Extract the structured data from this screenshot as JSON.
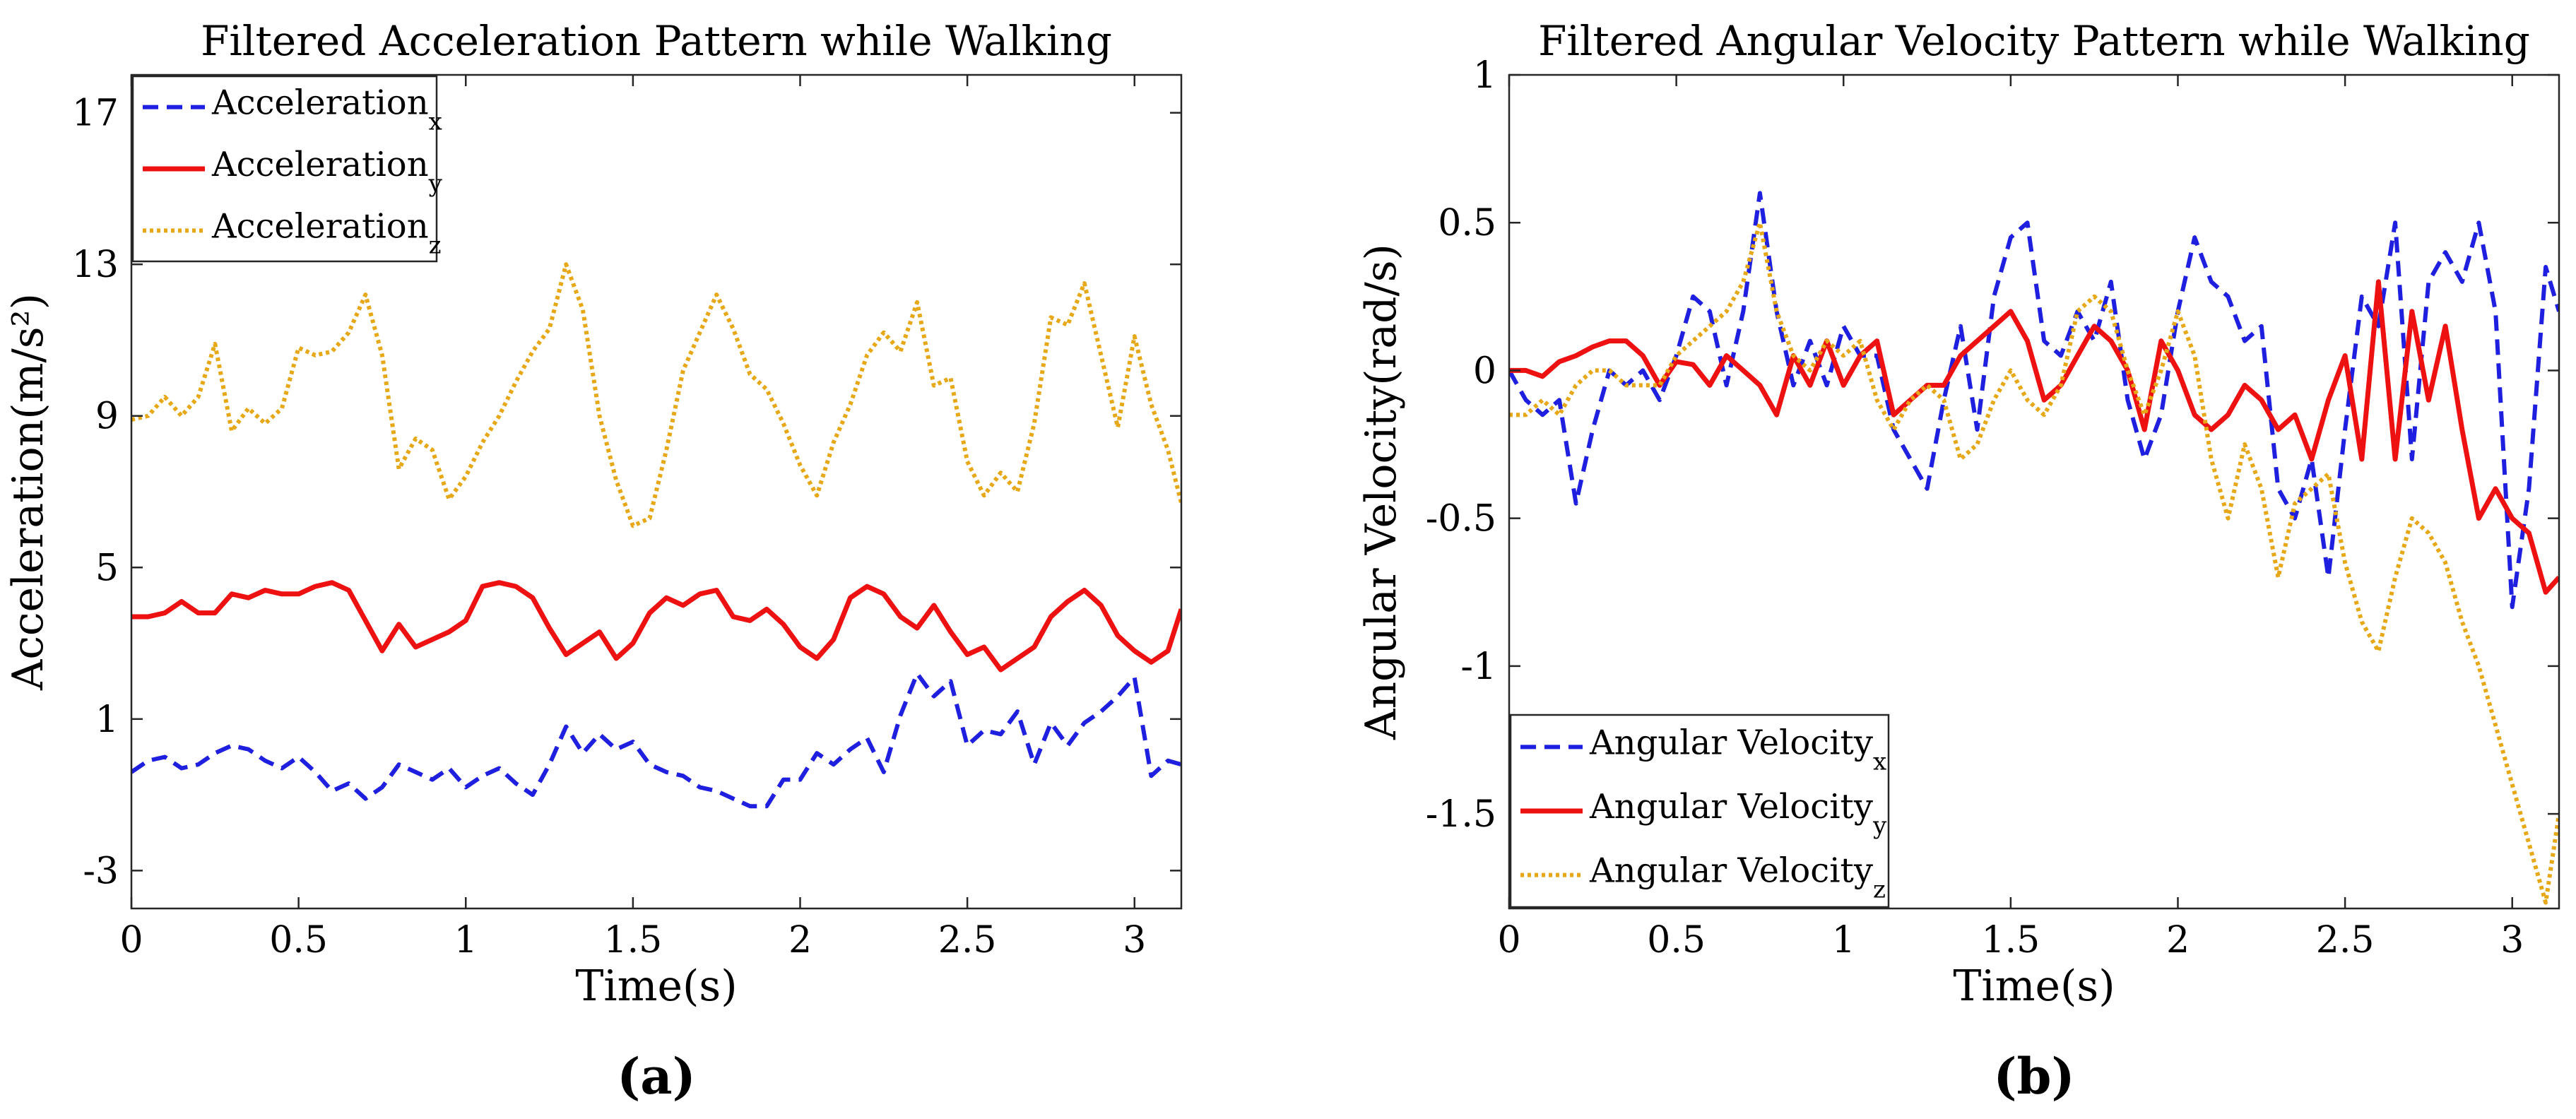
{
  "chart_data": [
    {
      "type": "line",
      "panel_label": "(a)",
      "title": "Filtered Acceleration Pattern while Walking",
      "xlabel": "Time(s)",
      "ylabel": "Acceleration(m/s²)",
      "xlim": [
        0,
        3.14
      ],
      "ylim": [
        -4,
        18
      ],
      "xticks": [
        0,
        0.5,
        1,
        1.5,
        2,
        2.5,
        3
      ],
      "xtick_labels": [
        "0",
        "0.5",
        "1",
        "1.5",
        "2",
        "2.5",
        "3"
      ],
      "yticks": [
        -3,
        1,
        5,
        9,
        13,
        17
      ],
      "ytick_labels": [
        "-3",
        "1",
        "5",
        "9",
        "13",
        "17"
      ],
      "legend_position": "top-left",
      "series": [
        {
          "name": "Acceleration",
          "subscript": "x",
          "color": "#1f1fe0",
          "style": "dashed",
          "x": [
            0,
            0.05,
            0.1,
            0.15,
            0.2,
            0.25,
            0.3,
            0.35,
            0.4,
            0.45,
            0.5,
            0.55,
            0.6,
            0.65,
            0.7,
            0.75,
            0.8,
            0.85,
            0.9,
            0.95,
            1.0,
            1.05,
            1.1,
            1.15,
            1.2,
            1.25,
            1.3,
            1.35,
            1.4,
            1.45,
            1.5,
            1.55,
            1.6,
            1.65,
            1.7,
            1.75,
            1.8,
            1.85,
            1.9,
            1.95,
            2.0,
            2.05,
            2.1,
            2.15,
            2.2,
            2.25,
            2.3,
            2.35,
            2.4,
            2.45,
            2.5,
            2.55,
            2.6,
            2.65,
            2.7,
            2.75,
            2.8,
            2.85,
            2.9,
            2.95,
            3.0,
            3.05,
            3.1,
            3.14
          ],
          "values": [
            -0.4,
            -0.1,
            0.0,
            -0.3,
            -0.2,
            0.1,
            0.3,
            0.2,
            -0.1,
            -0.3,
            0.0,
            -0.4,
            -0.9,
            -0.7,
            -1.1,
            -0.8,
            -0.2,
            -0.4,
            -0.6,
            -0.3,
            -0.8,
            -0.5,
            -0.3,
            -0.7,
            -1.0,
            -0.2,
            0.8,
            0.1,
            0.6,
            0.2,
            0.4,
            -0.2,
            -0.4,
            -0.5,
            -0.8,
            -0.9,
            -1.1,
            -1.3,
            -1.3,
            -0.6,
            -0.6,
            0.1,
            -0.2,
            0.2,
            0.5,
            -0.4,
            1.1,
            2.2,
            1.6,
            2.0,
            0.3,
            0.7,
            0.6,
            1.2,
            -0.2,
            0.9,
            0.3,
            0.9,
            1.2,
            1.6,
            2.1,
            -0.5,
            -0.1,
            -0.2
          ]
        },
        {
          "name": "Acceleration",
          "subscript": "y",
          "color": "#ee1111",
          "style": "solid",
          "x": [
            0,
            0.05,
            0.1,
            0.15,
            0.2,
            0.25,
            0.3,
            0.35,
            0.4,
            0.45,
            0.5,
            0.55,
            0.6,
            0.65,
            0.7,
            0.75,
            0.8,
            0.85,
            0.9,
            0.95,
            1.0,
            1.05,
            1.1,
            1.15,
            1.2,
            1.25,
            1.3,
            1.35,
            1.4,
            1.45,
            1.5,
            1.55,
            1.6,
            1.65,
            1.7,
            1.75,
            1.8,
            1.85,
            1.9,
            1.95,
            2.0,
            2.05,
            2.1,
            2.15,
            2.2,
            2.25,
            2.3,
            2.35,
            2.4,
            2.45,
            2.5,
            2.55,
            2.6,
            2.65,
            2.7,
            2.75,
            2.8,
            2.85,
            2.9,
            2.95,
            3.0,
            3.05,
            3.1,
            3.14
          ],
          "values": [
            3.7,
            3.7,
            3.8,
            4.1,
            3.8,
            3.8,
            4.3,
            4.2,
            4.4,
            4.3,
            4.3,
            4.5,
            4.6,
            4.4,
            3.6,
            2.8,
            3.5,
            2.9,
            3.1,
            3.3,
            3.6,
            4.5,
            4.6,
            4.5,
            4.2,
            3.4,
            2.7,
            3.0,
            3.3,
            2.6,
            3.0,
            3.8,
            4.2,
            4.0,
            4.3,
            4.4,
            3.7,
            3.6,
            3.9,
            3.5,
            2.9,
            2.6,
            3.1,
            4.2,
            4.5,
            4.3,
            3.7,
            3.4,
            4.0,
            3.3,
            2.7,
            2.9,
            2.3,
            2.6,
            2.9,
            3.7,
            4.1,
            4.4,
            4.0,
            3.2,
            2.8,
            2.5,
            2.8,
            3.9
          ]
        },
        {
          "name": "Acceleration",
          "subscript": "z",
          "color": "#e6a817",
          "style": "dotted",
          "x": [
            0,
            0.05,
            0.1,
            0.15,
            0.2,
            0.25,
            0.3,
            0.35,
            0.4,
            0.45,
            0.5,
            0.55,
            0.6,
            0.65,
            0.7,
            0.75,
            0.8,
            0.85,
            0.9,
            0.95,
            1.0,
            1.05,
            1.1,
            1.15,
            1.2,
            1.25,
            1.3,
            1.35,
            1.4,
            1.45,
            1.5,
            1.55,
            1.6,
            1.65,
            1.7,
            1.75,
            1.8,
            1.85,
            1.9,
            1.95,
            2.0,
            2.05,
            2.1,
            2.15,
            2.2,
            2.25,
            2.3,
            2.35,
            2.4,
            2.45,
            2.5,
            2.55,
            2.6,
            2.65,
            2.7,
            2.75,
            2.8,
            2.85,
            2.9,
            2.95,
            3.0,
            3.05,
            3.1,
            3.14
          ],
          "values": [
            8.9,
            9.0,
            9.5,
            9.0,
            9.5,
            10.9,
            8.6,
            9.2,
            8.8,
            9.2,
            10.8,
            10.6,
            10.7,
            11.2,
            12.2,
            10.6,
            7.6,
            8.4,
            8.1,
            6.8,
            7.4,
            8.3,
            9.0,
            9.9,
            10.7,
            11.3,
            13.0,
            11.8,
            9.0,
            7.3,
            6.1,
            6.3,
            8.1,
            10.2,
            11.2,
            12.2,
            11.3,
            10.1,
            9.7,
            8.8,
            7.7,
            6.9,
            8.3,
            9.3,
            10.6,
            11.2,
            10.7,
            12.0,
            9.8,
            10.0,
            7.8,
            6.9,
            7.5,
            7.0,
            8.8,
            11.6,
            11.4,
            12.5,
            10.6,
            8.7,
            11.1,
            9.3,
            8.1,
            6.7
          ]
        }
      ]
    },
    {
      "type": "line",
      "panel_label": "(b)",
      "title": "Filtered Angular Velocity Pattern while Walking",
      "xlabel": "Time(s)",
      "ylabel": "Angular Velocity(rad/s)",
      "xlim": [
        0,
        3.14
      ],
      "ylim": [
        -1.82,
        1.0
      ],
      "xticks": [
        0,
        0.5,
        1,
        1.5,
        2,
        2.5,
        3
      ],
      "xtick_labels": [
        "0",
        "0.5",
        "1",
        "1.5",
        "2",
        "2.5",
        "3"
      ],
      "yticks": [
        -1.5,
        -1,
        -0.5,
        0,
        0.5,
        1
      ],
      "ytick_labels": [
        "-1.5",
        "-1",
        "-0.5",
        "0",
        "0.5",
        "1"
      ],
      "legend_position": "bottom-left",
      "series": [
        {
          "name": "Angular Velocity",
          "subscript": "x",
          "color": "#1f1fe0",
          "style": "dashed",
          "x": [
            0,
            0.05,
            0.1,
            0.15,
            0.2,
            0.25,
            0.3,
            0.35,
            0.4,
            0.45,
            0.5,
            0.55,
            0.6,
            0.65,
            0.7,
            0.75,
            0.8,
            0.85,
            0.9,
            0.95,
            1.0,
            1.05,
            1.1,
            1.15,
            1.2,
            1.25,
            1.3,
            1.35,
            1.4,
            1.45,
            1.5,
            1.55,
            1.6,
            1.65,
            1.7,
            1.75,
            1.8,
            1.85,
            1.9,
            1.95,
            2.0,
            2.05,
            2.1,
            2.15,
            2.2,
            2.25,
            2.3,
            2.35,
            2.4,
            2.45,
            2.5,
            2.55,
            2.6,
            2.65,
            2.7,
            2.75,
            2.8,
            2.85,
            2.9,
            2.95,
            3.0,
            3.05,
            3.1,
            3.14
          ],
          "values": [
            0.0,
            -0.1,
            -0.15,
            -0.1,
            -0.45,
            -0.2,
            0.0,
            -0.05,
            0.0,
            -0.1,
            0.05,
            0.25,
            0.2,
            -0.05,
            0.2,
            0.6,
            0.2,
            -0.05,
            0.1,
            -0.05,
            0.15,
            0.05,
            0.05,
            -0.2,
            -0.3,
            -0.4,
            -0.1,
            0.15,
            -0.2,
            0.25,
            0.45,
            0.5,
            0.1,
            0.05,
            0.2,
            0.1,
            0.3,
            -0.1,
            -0.3,
            -0.15,
            0.2,
            0.45,
            0.3,
            0.25,
            0.1,
            0.15,
            -0.4,
            -0.5,
            -0.3,
            -0.7,
            -0.2,
            0.25,
            0.15,
            0.5,
            -0.3,
            0.3,
            0.4,
            0.3,
            0.5,
            0.2,
            -0.8,
            -0.4,
            0.35,
            0.2
          ]
        },
        {
          "name": "Angular Velocity",
          "subscript": "y",
          "color": "#ee1111",
          "style": "solid",
          "x": [
            0,
            0.05,
            0.1,
            0.15,
            0.2,
            0.25,
            0.3,
            0.35,
            0.4,
            0.45,
            0.5,
            0.55,
            0.6,
            0.65,
            0.7,
            0.75,
            0.8,
            0.85,
            0.9,
            0.95,
            1.0,
            1.05,
            1.1,
            1.15,
            1.2,
            1.25,
            1.3,
            1.35,
            1.4,
            1.45,
            1.5,
            1.55,
            1.6,
            1.65,
            1.7,
            1.75,
            1.8,
            1.85,
            1.9,
            1.95,
            2.0,
            2.05,
            2.1,
            2.15,
            2.2,
            2.25,
            2.3,
            2.35,
            2.4,
            2.45,
            2.5,
            2.55,
            2.6,
            2.65,
            2.7,
            2.75,
            2.8,
            2.85,
            2.9,
            2.95,
            3.0,
            3.05,
            3.1,
            3.14
          ],
          "values": [
            0.0,
            0.0,
            -0.02,
            0.03,
            0.05,
            0.08,
            0.1,
            0.1,
            0.05,
            -0.05,
            0.03,
            0.02,
            -0.05,
            0.05,
            0.0,
            -0.05,
            -0.15,
            0.05,
            -0.05,
            0.1,
            -0.05,
            0.05,
            0.1,
            -0.15,
            -0.1,
            -0.05,
            -0.05,
            0.05,
            0.1,
            0.15,
            0.2,
            0.1,
            -0.1,
            -0.05,
            0.05,
            0.15,
            0.1,
            0.0,
            -0.2,
            0.1,
            0.0,
            -0.15,
            -0.2,
            -0.15,
            -0.05,
            -0.1,
            -0.2,
            -0.15,
            -0.3,
            -0.1,
            0.05,
            -0.3,
            0.3,
            -0.3,
            0.2,
            -0.1,
            0.15,
            -0.2,
            -0.5,
            -0.4,
            -0.5,
            -0.55,
            -0.75,
            -0.7
          ]
        },
        {
          "name": "Angular Velocity",
          "subscript": "z",
          "color": "#e6a817",
          "style": "dotted",
          "x": [
            0,
            0.05,
            0.1,
            0.15,
            0.2,
            0.25,
            0.3,
            0.35,
            0.4,
            0.45,
            0.5,
            0.55,
            0.6,
            0.65,
            0.7,
            0.75,
            0.8,
            0.85,
            0.9,
            0.95,
            1.0,
            1.05,
            1.1,
            1.15,
            1.2,
            1.25,
            1.3,
            1.35,
            1.4,
            1.45,
            1.5,
            1.55,
            1.6,
            1.65,
            1.7,
            1.75,
            1.8,
            1.85,
            1.9,
            1.95,
            2.0,
            2.05,
            2.1,
            2.15,
            2.2,
            2.25,
            2.3,
            2.35,
            2.4,
            2.45,
            2.5,
            2.55,
            2.6,
            2.65,
            2.7,
            2.75,
            2.8,
            2.85,
            2.9,
            2.95,
            3.0,
            3.05,
            3.1,
            3.14
          ],
          "values": [
            -0.15,
            -0.15,
            -0.1,
            -0.15,
            -0.05,
            0.0,
            0.0,
            -0.05,
            -0.05,
            -0.05,
            0.05,
            0.1,
            0.15,
            0.2,
            0.3,
            0.5,
            0.2,
            0.05,
            0.0,
            0.1,
            0.05,
            0.1,
            -0.1,
            -0.2,
            -0.1,
            -0.05,
            -0.1,
            -0.3,
            -0.25,
            -0.1,
            0.0,
            -0.1,
            -0.15,
            -0.05,
            0.2,
            0.25,
            0.2,
            0.0,
            -0.15,
            0.0,
            0.2,
            0.05,
            -0.3,
            -0.5,
            -0.25,
            -0.4,
            -0.7,
            -0.45,
            -0.4,
            -0.35,
            -0.65,
            -0.85,
            -0.95,
            -0.7,
            -0.5,
            -0.55,
            -0.65,
            -0.85,
            -1.0,
            -1.2,
            -1.4,
            -1.6,
            -1.8,
            -1.5
          ]
        }
      ]
    }
  ]
}
